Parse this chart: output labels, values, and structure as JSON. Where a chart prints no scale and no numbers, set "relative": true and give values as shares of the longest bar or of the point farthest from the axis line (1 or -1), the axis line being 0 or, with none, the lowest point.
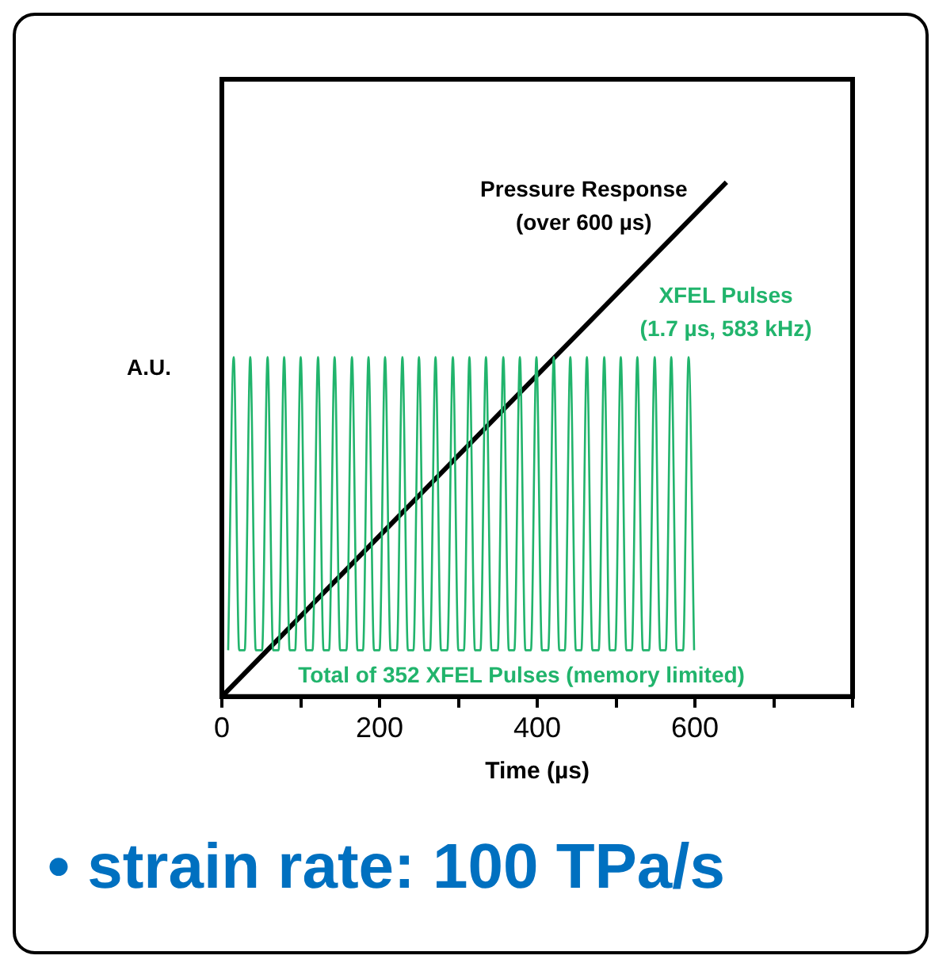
{
  "chart_data": {
    "type": "line",
    "relative": true,
    "xlabel": "Time (µs)",
    "ylabel": "A.U.",
    "xlim": [
      0,
      800
    ],
    "xticks": [
      0,
      {
        "value": 100,
        "label": null
      },
      200,
      {
        "value": 300,
        "label": null
      },
      400,
      {
        "value": 500,
        "label": null
      },
      600,
      {
        "value": 700,
        "label": null
      },
      {
        "value": 800,
        "label": null
      }
    ],
    "grid": false,
    "legend": false,
    "marker": "none",
    "line_style": "solid",
    "series": [
      {
        "name": "XFEL Pulses\n(1.7 µs, 583 kHz)",
        "color": "#21b46c",
        "x": [
          8,
          15,
          22,
          29,
          36,
          43,
          51,
          58,
          65,
          72,
          79,
          86,
          93,
          100,
          107,
          115,
          122,
          129,
          136,
          143,
          150,
          158,
          165,
          172,
          179,
          186,
          193,
          200,
          207,
          214,
          222,
          229,
          236,
          243,
          250,
          257,
          264,
          271,
          278,
          286,
          293,
          300,
          307,
          314,
          321,
          328,
          335,
          342,
          350,
          357,
          364,
          371,
          378,
          385,
          392,
          399,
          406,
          414,
          421,
          428,
          435,
          442,
          449,
          456,
          463,
          470,
          478,
          485,
          492,
          499,
          506,
          513,
          520,
          527,
          534,
          542,
          549,
          556,
          563,
          570,
          577,
          585,
          592,
          599
        ],
        "values": [
          0.09,
          0.66,
          0.09,
          0.09,
          0.66,
          0.09,
          0.09,
          0.66,
          0.09,
          0.09,
          0.66,
          0.09,
          0.09,
          0.66,
          0.09,
          0.09,
          0.66,
          0.09,
          0.09,
          0.66,
          0.09,
          0.09,
          0.66,
          0.09,
          0.09,
          0.66,
          0.09,
          0.09,
          0.66,
          0.09,
          0.09,
          0.66,
          0.09,
          0.09,
          0.66,
          0.09,
          0.09,
          0.66,
          0.09,
          0.09,
          0.66,
          0.09,
          0.09,
          0.66,
          0.09,
          0.09,
          0.66,
          0.09,
          0.09,
          0.66,
          0.09,
          0.09,
          0.66,
          0.09,
          0.09,
          0.66,
          0.09,
          0.09,
          0.66,
          0.09,
          0.09,
          0.66,
          0.09,
          0.09,
          0.66,
          0.09,
          0.09,
          0.66,
          0.09,
          0.09,
          0.66,
          0.09,
          0.09,
          0.66,
          0.09,
          0.09,
          0.66,
          0.09,
          0.09,
          0.66,
          0.09,
          0.09,
          0.66,
          0.09
        ]
      },
      {
        "name": "Pressure Response\n(over 600 µs)",
        "color": "#000000",
        "x": [
          0,
          640
        ],
        "values": [
          0,
          1
        ]
      }
    ],
    "annotations": [
      "Total of 352 XFEL Pulses (memory limited)",
      "• strain rate: 100 TPa/s"
    ]
  }
}
